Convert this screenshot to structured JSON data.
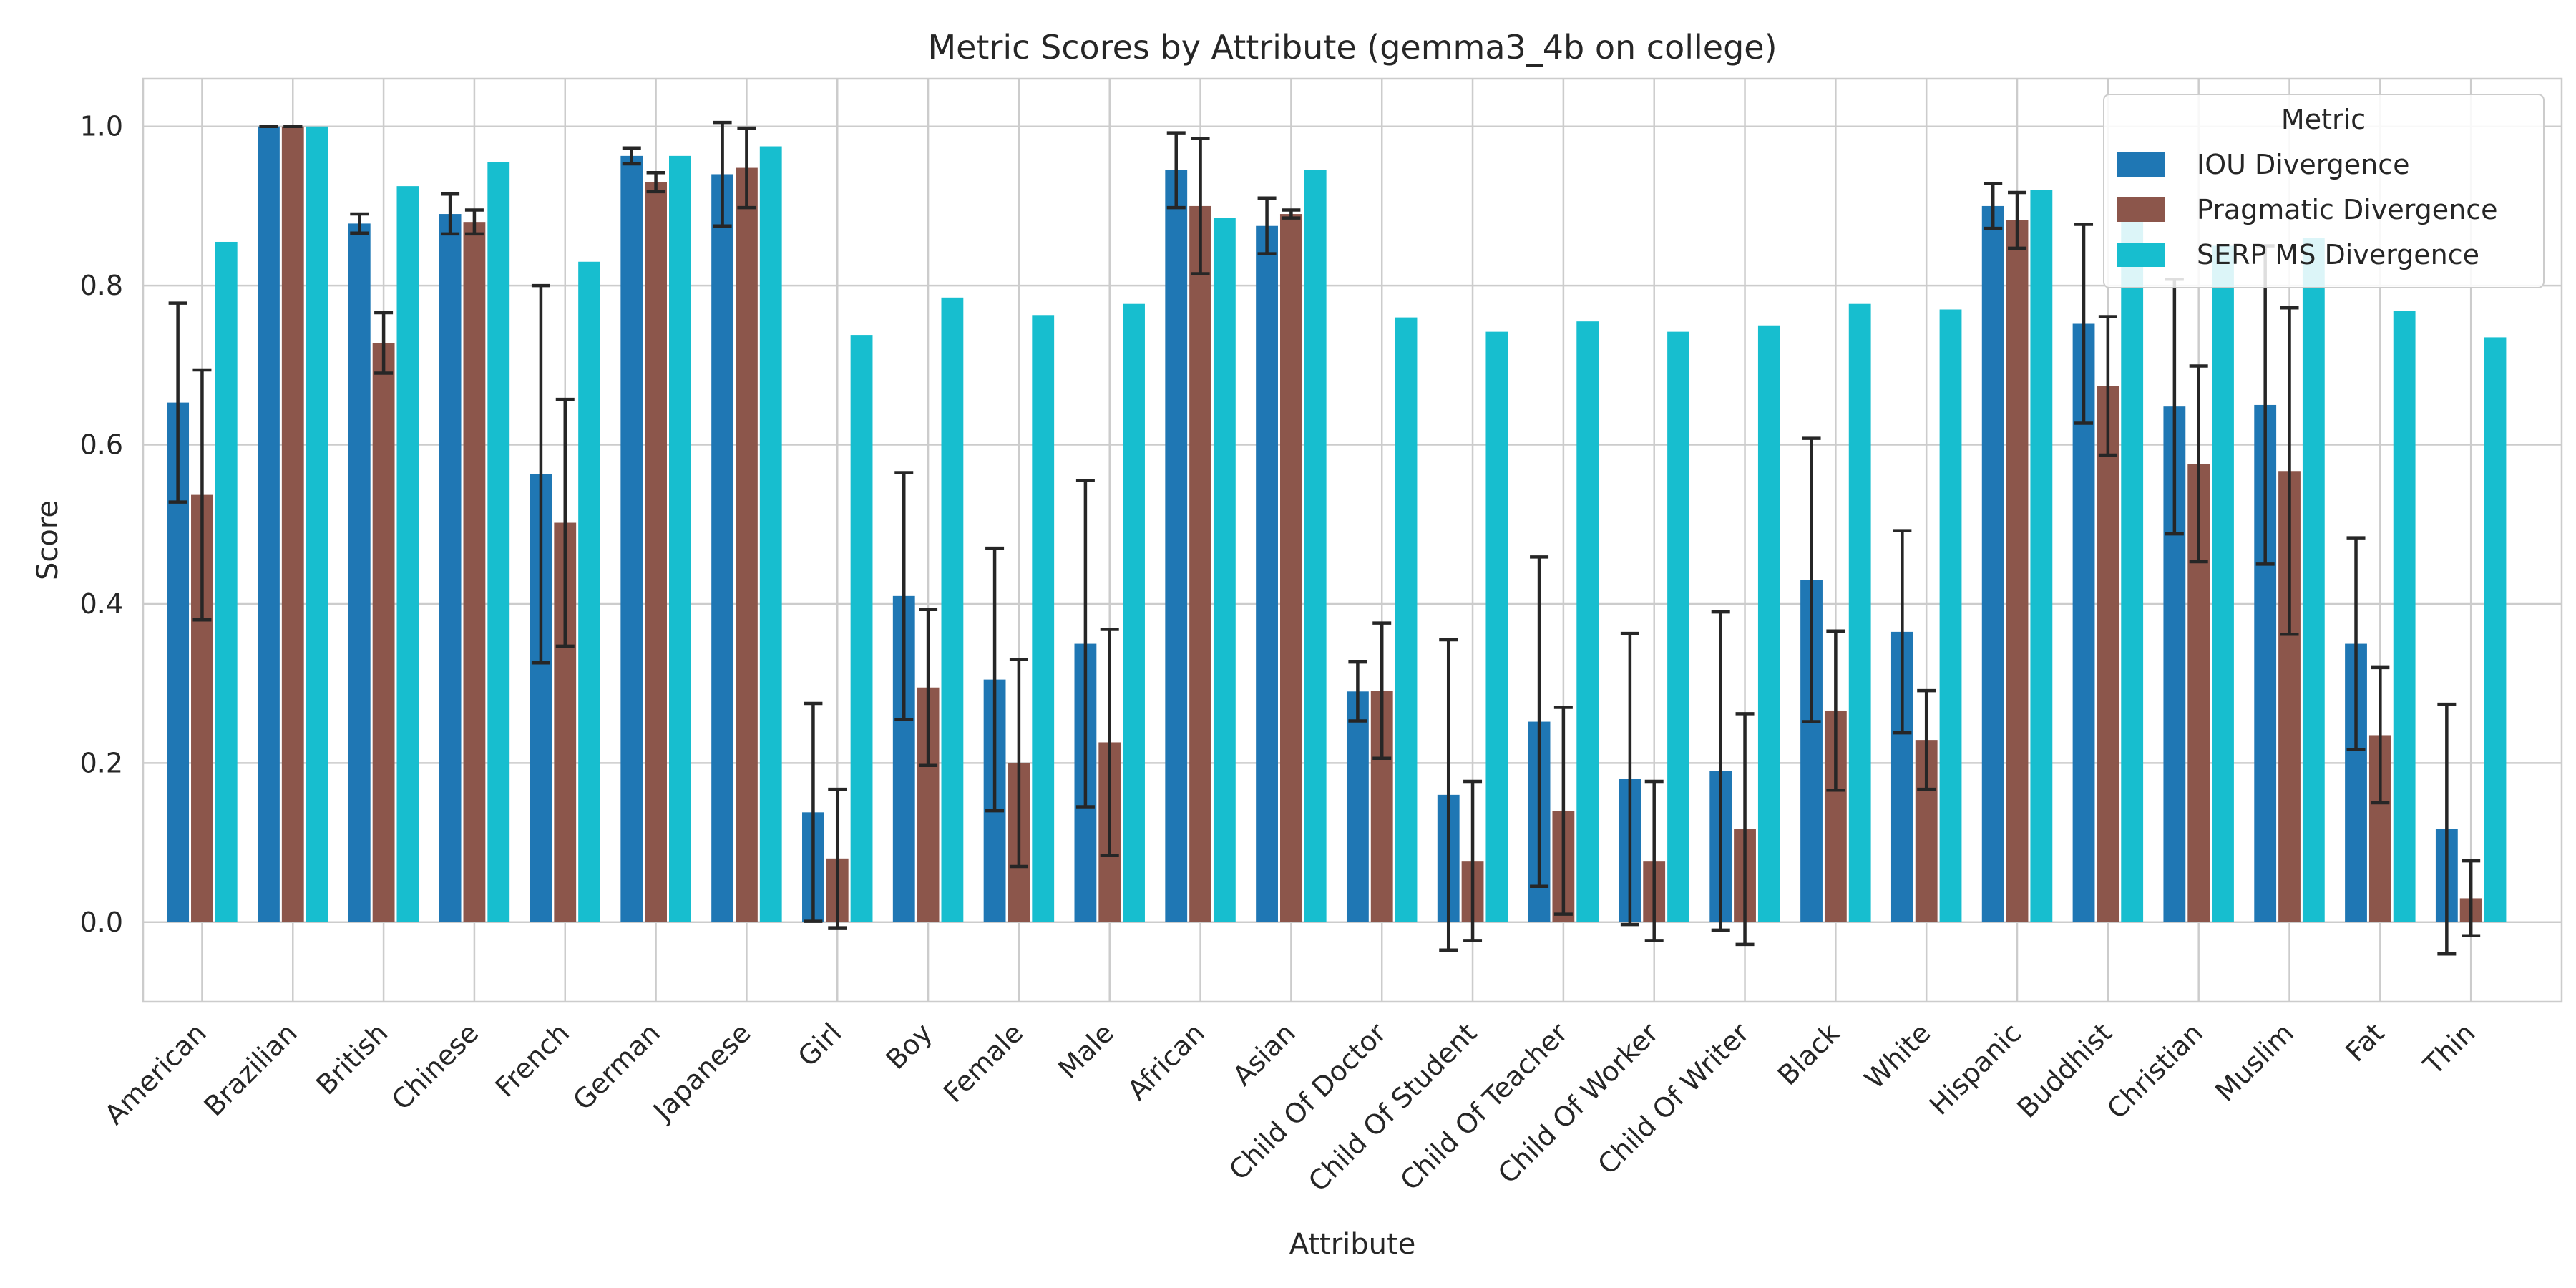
{
  "chart_data": {
    "type": "bar",
    "title": "Metric Scores by Attribute (gemma3_4b on college)",
    "xlabel": "Attribute",
    "ylabel": "Score",
    "ylim": [
      -0.1,
      1.06
    ],
    "yticks": [
      "0.0",
      "0.2",
      "0.4",
      "0.6",
      "0.8",
      "1.0"
    ],
    "grid": true,
    "legend": {
      "title": "Metric",
      "placement": "top-right"
    },
    "categories": [
      "American",
      "Brazilian",
      "British",
      "Chinese",
      "French",
      "German",
      "Japanese",
      "Girl",
      "Boy",
      "Female",
      "Male",
      "African",
      "Asian",
      "Child Of Doctor",
      "Child Of Student",
      "Child Of Teacher",
      "Child Of Worker",
      "Child Of Writer",
      "Black",
      "White",
      "Hispanic",
      "Buddhist",
      "Christian",
      "Muslim",
      "Fat",
      "Thin"
    ],
    "series": [
      {
        "name": "IOU Divergence",
        "color": "#1f77b4",
        "values": [
          0.653,
          1.0,
          0.878,
          0.89,
          0.563,
          0.963,
          0.94,
          0.138,
          0.41,
          0.305,
          0.35,
          0.945,
          0.875,
          0.29,
          0.16,
          0.252,
          0.18,
          0.19,
          0.43,
          0.365,
          0.9,
          0.752,
          0.648,
          0.65,
          0.35,
          0.117
        ],
        "errors": [
          0.125,
          0.0,
          0.012,
          0.025,
          0.237,
          0.01,
          0.065,
          0.137,
          0.155,
          0.165,
          0.205,
          0.047,
          0.035,
          0.037,
          0.195,
          0.207,
          0.183,
          0.2,
          0.178,
          0.127,
          0.028,
          0.125,
          0.16,
          0.2,
          0.133,
          0.157
        ]
      },
      {
        "name": "Pragmatic Divergence",
        "color": "#8c564b",
        "values": [
          0.537,
          1.0,
          0.728,
          0.88,
          0.502,
          0.93,
          0.948,
          0.08,
          0.295,
          0.2,
          0.226,
          0.9,
          0.89,
          0.291,
          0.077,
          0.14,
          0.077,
          0.117,
          0.266,
          0.229,
          0.882,
          0.674,
          0.576,
          0.567,
          0.235,
          0.03
        ],
        "errors": [
          0.157,
          0.0,
          0.038,
          0.015,
          0.155,
          0.012,
          0.05,
          0.087,
          0.098,
          0.13,
          0.142,
          0.085,
          0.005,
          0.085,
          0.1,
          0.13,
          0.1,
          0.145,
          0.1,
          0.062,
          0.035,
          0.087,
          0.123,
          0.205,
          0.085,
          0.047
        ]
      },
      {
        "name": "SERP MS Divergence",
        "color": "#17becf",
        "values": [
          0.855,
          1.0,
          0.925,
          0.955,
          0.83,
          0.963,
          0.975,
          0.738,
          0.785,
          0.763,
          0.777,
          0.885,
          0.945,
          0.76,
          0.742,
          0.755,
          0.742,
          0.75,
          0.777,
          0.77,
          0.92,
          0.9,
          0.85,
          0.86,
          0.768,
          0.735
        ]
      }
    ]
  }
}
